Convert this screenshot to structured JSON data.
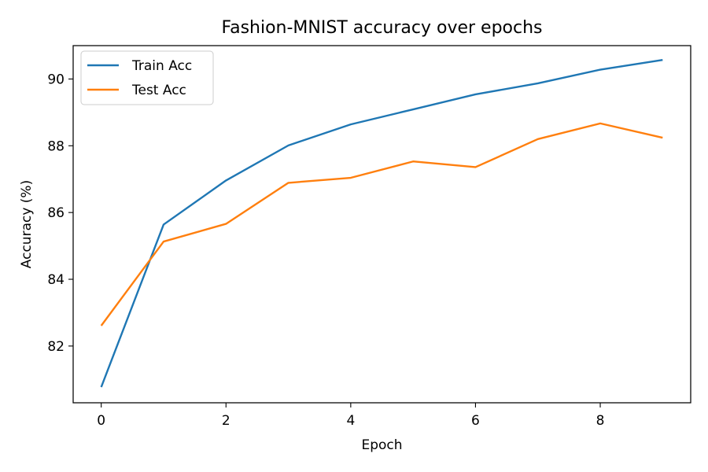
{
  "chart_data": {
    "type": "line",
    "title": "Fashion-MNIST accuracy over epochs",
    "xlabel": "Epoch",
    "ylabel": "Accuracy (%)",
    "x": [
      0,
      1,
      2,
      3,
      4,
      5,
      6,
      7,
      8,
      9
    ],
    "xlim": [
      -0.45,
      9.45
    ],
    "ylim": [
      80.3,
      91.0
    ],
    "xticks": [
      0,
      2,
      4,
      6,
      8
    ],
    "yticks": [
      82,
      84,
      86,
      88,
      90
    ],
    "xtick_labels": [
      "0",
      "2",
      "4",
      "6",
      "8"
    ],
    "ytick_labels": [
      "82",
      "84",
      "86",
      "88",
      "90"
    ],
    "grid": false,
    "legend_position": "top-left",
    "series": [
      {
        "name": "Train Acc",
        "color": "#1f77b4",
        "values": [
          80.77,
          85.64,
          86.96,
          88.01,
          88.64,
          89.09,
          89.54,
          89.87,
          90.28,
          90.57
        ]
      },
      {
        "name": "Test Acc",
        "color": "#ff7f0e",
        "values": [
          82.61,
          85.13,
          85.66,
          86.89,
          87.04,
          87.53,
          87.36,
          88.2,
          88.67,
          88.24
        ]
      }
    ]
  }
}
